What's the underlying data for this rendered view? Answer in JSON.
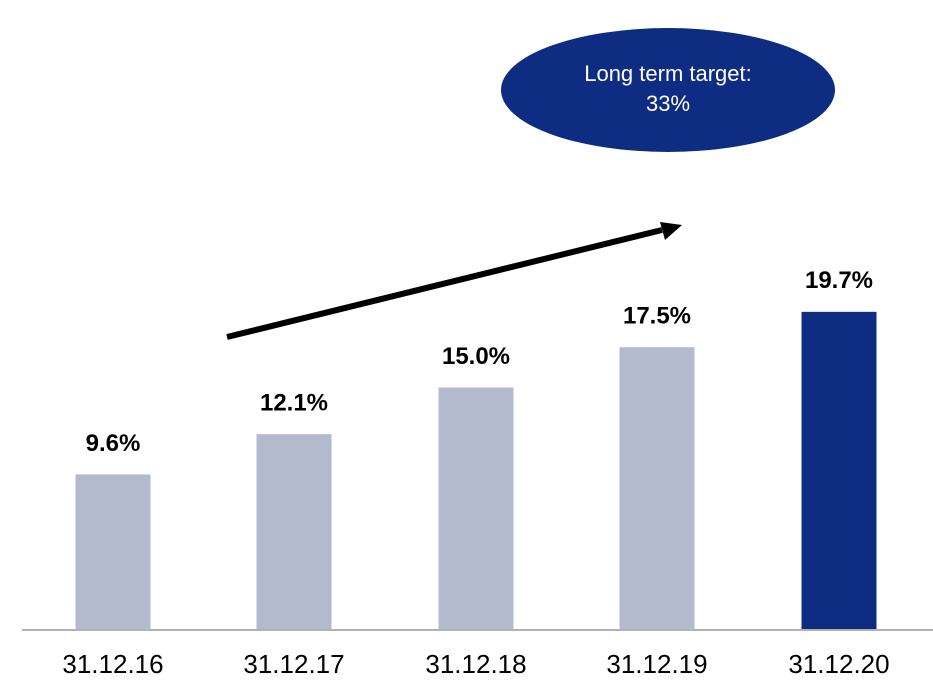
{
  "chart_data": {
    "type": "bar",
    "categories": [
      "31.12.16",
      "31.12.17",
      "31.12.18",
      "31.12.19",
      "31.12.20"
    ],
    "values": [
      9.6,
      12.1,
      15.0,
      17.5,
      19.7
    ],
    "value_labels": [
      "9.6%",
      "12.1%",
      "15.0%",
      "17.5%",
      "19.7%"
    ],
    "colors": [
      "#b4bacd",
      "#b4bacd",
      "#b4bacd",
      "#b4bacd",
      "#0e2d82"
    ],
    "annotation": [
      "Long term target:",
      "33%"
    ],
    "annotation_color": "#0e2d82"
  }
}
